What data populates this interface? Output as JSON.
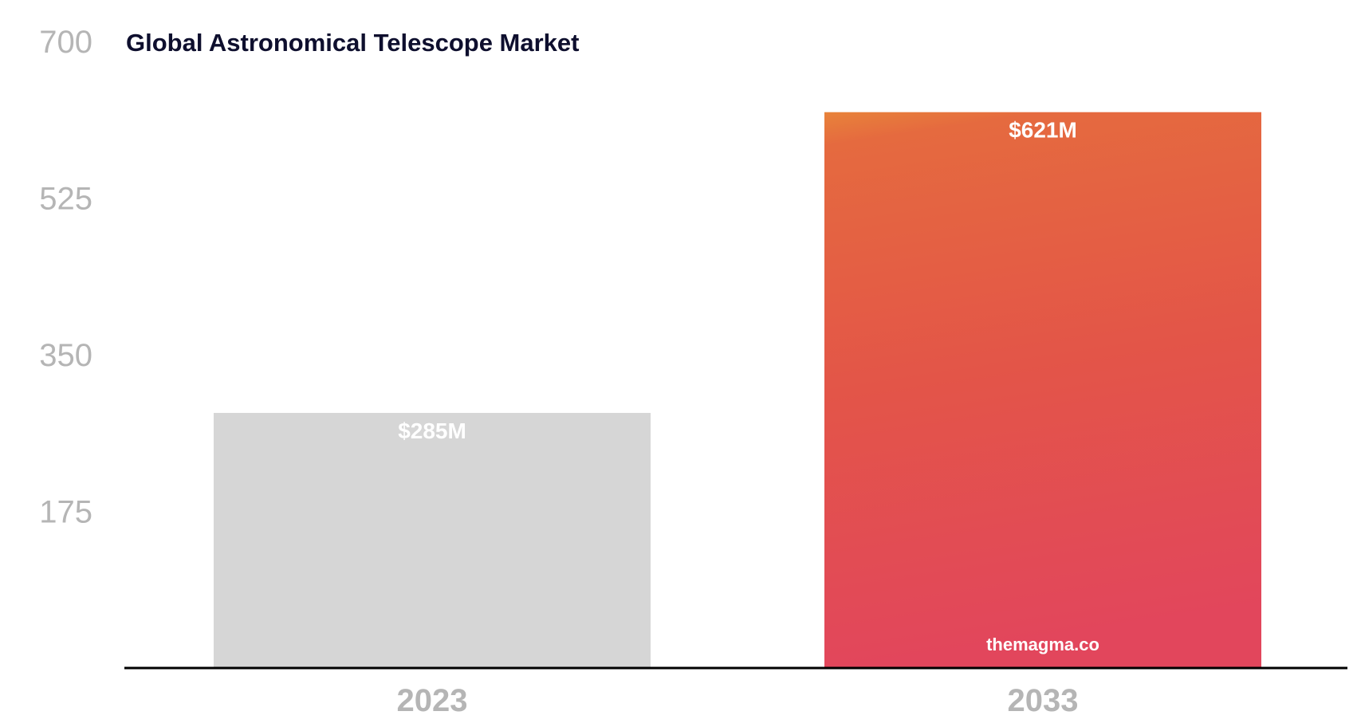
{
  "chart_data": {
    "type": "bar",
    "title": "Global Astronomical Telescope Market",
    "categories": [
      "2023",
      "2033"
    ],
    "values": [
      285,
      621
    ],
    "value_labels": [
      "$285M",
      "$621M"
    ],
    "unit": "USD million",
    "ylim": [
      0,
      700
    ],
    "y_ticks": [
      175,
      350,
      525,
      700
    ],
    "y_tick_labels": [
      "175",
      "350",
      "525",
      "700"
    ],
    "xlabel": "",
    "ylabel": "",
    "grid": false,
    "legend": "none",
    "watermark": "themagma.co",
    "colors": {
      "bar_2023": "#d6d6d6",
      "bar_2033_top": "#e8833a",
      "bar_2033_mid": "#e45a46",
      "bar_2033_bottom": "#e2465c",
      "axis_line": "#000000",
      "tick_text": "#b5b5b5",
      "title_text": "#0e0f2e",
      "label_text": "#ffffff"
    }
  }
}
